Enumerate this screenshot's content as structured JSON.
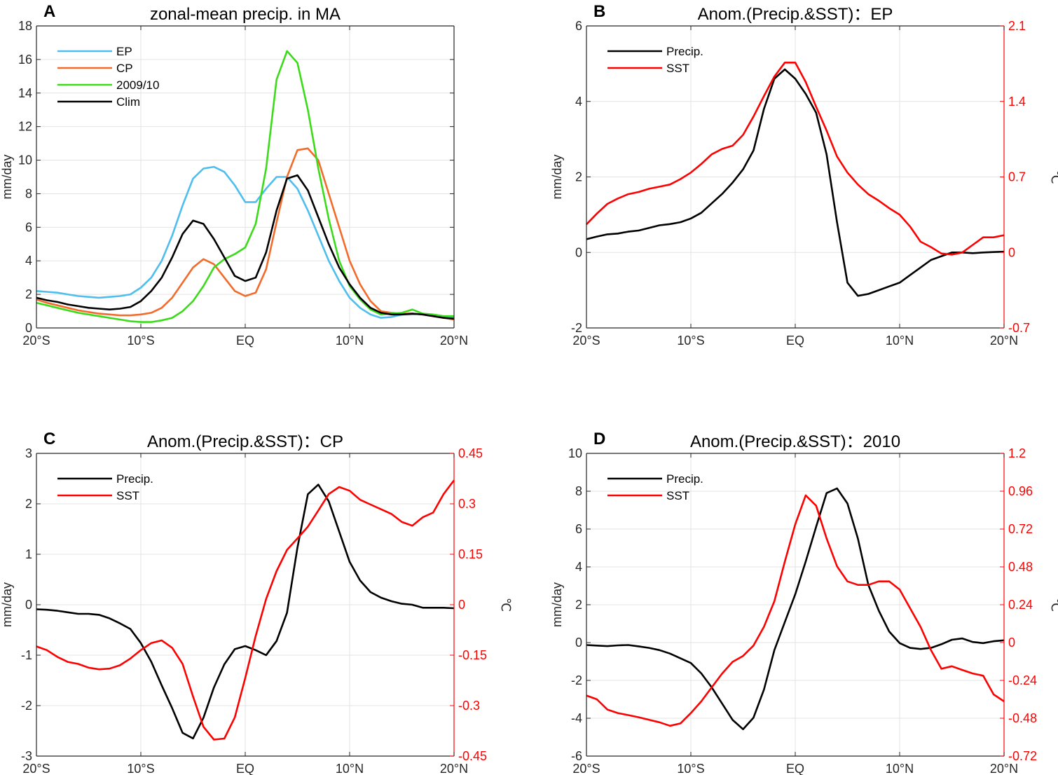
{
  "chart_data": [
    {
      "type": "line",
      "panel_letter": "A",
      "title": "zonal-mean precip. in MA",
      "ylabel": "mm/day",
      "ylim": [
        0,
        18
      ],
      "yticks": [
        0,
        2,
        4,
        6,
        8,
        10,
        12,
        14,
        16,
        18
      ],
      "ytick_labels": [
        "0",
        "2",
        "4",
        "6",
        "8",
        "10",
        "12",
        "14",
        "16",
        "18"
      ],
      "xlim": [
        -20,
        20
      ],
      "xticks": [
        -20,
        -10,
        0,
        10,
        20
      ],
      "xtick_labels": [
        "20°S",
        "10°S",
        "EQ",
        "10°N",
        "20°N"
      ],
      "grid": true,
      "legend_position": "top-left",
      "x": [
        -20,
        -19,
        -18,
        -17,
        -16,
        -15,
        -14,
        -13,
        -12,
        -11,
        -10,
        -9,
        -8,
        -7,
        -6,
        -5,
        -4,
        -3,
        -2,
        -1,
        0,
        1,
        2,
        3,
        4,
        5,
        6,
        7,
        8,
        9,
        10,
        11,
        12,
        13,
        14,
        15,
        16,
        17,
        18,
        19,
        20
      ],
      "series": [
        {
          "name": "EP",
          "color": "#4DBEEE",
          "axis": "left",
          "values": [
            2.2,
            2.15,
            2.1,
            2.0,
            1.9,
            1.85,
            1.8,
            1.85,
            1.9,
            2.0,
            2.4,
            3.0,
            4.0,
            5.5,
            7.3,
            8.9,
            9.5,
            9.6,
            9.3,
            8.5,
            7.5,
            7.5,
            8.3,
            9.0,
            9.0,
            8.3,
            7.0,
            5.5,
            4.0,
            2.8,
            1.8,
            1.2,
            0.8,
            0.6,
            0.65,
            0.8,
            0.8,
            0.85,
            0.75,
            0.65,
            0.6
          ]
        },
        {
          "name": "CP",
          "color": "#F26B2A",
          "axis": "left",
          "values": [
            1.7,
            1.5,
            1.35,
            1.2,
            1.05,
            0.95,
            0.85,
            0.8,
            0.75,
            0.75,
            0.8,
            0.9,
            1.2,
            1.8,
            2.7,
            3.6,
            4.1,
            3.8,
            3.0,
            2.2,
            1.9,
            2.1,
            3.5,
            6.3,
            9.0,
            10.6,
            10.7,
            10.0,
            8.0,
            6.0,
            4.0,
            2.6,
            1.6,
            1.0,
            0.9,
            0.85,
            0.85,
            0.8,
            0.7,
            0.6,
            0.5
          ]
        },
        {
          "name": "2009/10",
          "color": "#3BDB1A",
          "axis": "left",
          "values": [
            1.5,
            1.35,
            1.2,
            1.05,
            0.9,
            0.8,
            0.7,
            0.6,
            0.5,
            0.4,
            0.35,
            0.35,
            0.45,
            0.6,
            1.0,
            1.6,
            2.5,
            3.6,
            4.1,
            4.4,
            4.8,
            6.2,
            9.5,
            14.8,
            16.5,
            15.8,
            13.0,
            9.5,
            6.5,
            4.0,
            2.5,
            1.7,
            1.1,
            0.8,
            0.85,
            0.9,
            1.1,
            0.85,
            0.8,
            0.7,
            0.7
          ]
        },
        {
          "name": "Clim",
          "color": "#000000",
          "axis": "left",
          "values": [
            1.8,
            1.65,
            1.55,
            1.4,
            1.3,
            1.2,
            1.15,
            1.1,
            1.15,
            1.25,
            1.6,
            2.2,
            3.0,
            4.2,
            5.6,
            6.4,
            6.2,
            5.3,
            4.2,
            3.1,
            2.8,
            3.0,
            4.5,
            7.0,
            8.9,
            9.1,
            8.2,
            6.6,
            5.0,
            3.6,
            2.6,
            1.8,
            1.2,
            0.9,
            0.8,
            0.8,
            0.85,
            0.8,
            0.7,
            0.6,
            0.55
          ]
        }
      ]
    },
    {
      "type": "line",
      "panel_letter": "B",
      "title": "Anom.(Precip.&SST)：EP",
      "ylabel": "mm/day",
      "ylabel_right": "℃",
      "ylim": [
        -2,
        6
      ],
      "yticks": [
        -2,
        0,
        2,
        4,
        6
      ],
      "ytick_labels": [
        "-2",
        "0",
        "2",
        "4",
        "6"
      ],
      "ylim_right": [
        -0.7,
        2.1
      ],
      "yticks_right": [
        -0.7,
        0,
        0.7,
        1.4,
        2.1
      ],
      "ytick_labels_right": [
        "-0.7",
        "0",
        "0.7",
        "1.4",
        "2.1"
      ],
      "xlim": [
        -20,
        20
      ],
      "xticks": [
        -20,
        -10,
        0,
        10,
        20
      ],
      "xtick_labels": [
        "20°S",
        "10°S",
        "EQ",
        "10°N",
        "20°N"
      ],
      "grid": true,
      "legend_position": "top-left",
      "x": [
        -20,
        -19,
        -18,
        -17,
        -16,
        -15,
        -14,
        -13,
        -12,
        -11,
        -10,
        -9,
        -8,
        -7,
        -6,
        -5,
        -4,
        -3,
        -2,
        -1,
        0,
        1,
        2,
        3,
        4,
        5,
        6,
        7,
        8,
        9,
        10,
        11,
        12,
        13,
        14,
        15,
        16,
        17,
        18,
        19,
        20
      ],
      "series": [
        {
          "name": "Precip.",
          "color": "#000000",
          "axis": "left",
          "values": [
            0.35,
            0.42,
            0.48,
            0.5,
            0.55,
            0.58,
            0.65,
            0.72,
            0.75,
            0.8,
            0.9,
            1.05,
            1.3,
            1.55,
            1.85,
            2.2,
            2.7,
            3.8,
            4.6,
            4.85,
            4.6,
            4.2,
            3.7,
            2.6,
            0.8,
            -0.8,
            -1.15,
            -1.1,
            -1.0,
            -0.9,
            -0.8,
            -0.6,
            -0.4,
            -0.2,
            -0.1,
            0.0,
            0.0,
            -0.02,
            0.0,
            0.01,
            0.02
          ]
        },
        {
          "name": "SST",
          "color": "#FF0000",
          "axis": "right",
          "values": [
            0.26,
            0.36,
            0.45,
            0.5,
            0.54,
            0.56,
            0.59,
            0.61,
            0.63,
            0.68,
            0.74,
            0.82,
            0.91,
            0.96,
            0.99,
            1.09,
            1.26,
            1.45,
            1.63,
            1.76,
            1.76,
            1.58,
            1.35,
            1.13,
            0.89,
            0.74,
            0.63,
            0.54,
            0.48,
            0.41,
            0.35,
            0.24,
            0.1,
            0.05,
            -0.01,
            -0.02,
            0.0,
            0.07,
            0.14,
            0.14,
            0.16
          ]
        }
      ]
    },
    {
      "type": "line",
      "panel_letter": "C",
      "title": "Anom.(Precip.&SST)：CP",
      "ylabel": "mm/day",
      "ylabel_right": "℃",
      "ylim": [
        -3,
        3
      ],
      "yticks": [
        -3,
        -2,
        -1,
        0,
        1,
        2,
        3
      ],
      "ytick_labels": [
        "-3",
        "-2",
        "-1",
        "0",
        "1",
        "2",
        "3"
      ],
      "ylim_right": [
        -0.45,
        0.45
      ],
      "yticks_right": [
        -0.45,
        -0.3,
        -0.15,
        0,
        0.15,
        0.3,
        0.45
      ],
      "ytick_labels_right": [
        "-0.45",
        "-0.3",
        "-0.15",
        "0",
        "0.15",
        "0.3",
        "0.45"
      ],
      "xlim": [
        -20,
        20
      ],
      "xticks": [
        -20,
        -10,
        0,
        10,
        20
      ],
      "xtick_labels": [
        "20°S",
        "10°S",
        "EQ",
        "10°N",
        "20°N"
      ],
      "grid": true,
      "legend_position": "top-left",
      "x": [
        -20,
        -19,
        -18,
        -17,
        -16,
        -15,
        -14,
        -13,
        -12,
        -11,
        -10,
        -9,
        -8,
        -7,
        -6,
        -5,
        -4,
        -3,
        -2,
        -1,
        0,
        1,
        2,
        3,
        4,
        5,
        6,
        7,
        8,
        9,
        10,
        11,
        12,
        13,
        14,
        15,
        16,
        17,
        18,
        19,
        20
      ],
      "series": [
        {
          "name": "Precip.",
          "color": "#000000",
          "axis": "left",
          "values": [
            -0.09,
            -0.1,
            -0.12,
            -0.15,
            -0.18,
            -0.18,
            -0.2,
            -0.27,
            -0.37,
            -0.48,
            -0.76,
            -1.13,
            -1.6,
            -2.05,
            -2.54,
            -2.65,
            -2.24,
            -1.64,
            -1.18,
            -0.88,
            -0.82,
            -0.9,
            -1.0,
            -0.72,
            -0.16,
            1.13,
            2.19,
            2.38,
            2.05,
            1.45,
            0.85,
            0.48,
            0.25,
            0.14,
            0.07,
            0.02,
            0.0,
            -0.06,
            -0.06,
            -0.06,
            -0.07
          ]
        },
        {
          "name": "SST",
          "color": "#FF0000",
          "axis": "right",
          "values": [
            -0.124,
            -0.135,
            -0.155,
            -0.17,
            -0.176,
            -0.187,
            -0.192,
            -0.19,
            -0.18,
            -0.16,
            -0.135,
            -0.114,
            -0.106,
            -0.128,
            -0.176,
            -0.273,
            -0.363,
            -0.401,
            -0.398,
            -0.335,
            -0.218,
            -0.093,
            0.017,
            0.1,
            0.163,
            0.197,
            0.232,
            0.28,
            0.329,
            0.35,
            0.339,
            0.312,
            0.298,
            0.284,
            0.27,
            0.246,
            0.235,
            0.26,
            0.274,
            0.329,
            0.37
          ]
        }
      ]
    },
    {
      "type": "line",
      "panel_letter": "D",
      "title": "Anom.(Precip.&SST)：2010",
      "ylabel": "mm/day",
      "ylabel_right": "℃",
      "ylim": [
        -6,
        10
      ],
      "yticks": [
        -6,
        -4,
        -2,
        0,
        2,
        4,
        6,
        8,
        10
      ],
      "ytick_labels": [
        "-6",
        "-4",
        "-2",
        "0",
        "2",
        "4",
        "6",
        "8",
        "10"
      ],
      "ylim_right": [
        -0.72,
        1.2
      ],
      "yticks_right": [
        -0.72,
        -0.48,
        -0.24,
        0,
        0.24,
        0.48,
        0.72,
        0.96,
        1.2
      ],
      "ytick_labels_right": [
        "-0.72",
        "-0.48",
        "-0.24",
        "0",
        "0.24",
        "0.48",
        "0.72",
        "0.96",
        "1.2"
      ],
      "xlim": [
        -20,
        20
      ],
      "xticks": [
        -20,
        -10,
        0,
        10,
        20
      ],
      "xtick_labels": [
        "20°S",
        "10°S",
        "EQ",
        "10°N",
        "20°N"
      ],
      "grid": true,
      "legend_position": "top-left",
      "x": [
        -20,
        -19,
        -18,
        -17,
        -16,
        -15,
        -14,
        -13,
        -12,
        -11,
        -10,
        -9,
        -8,
        -7,
        -6,
        -5,
        -4,
        -3,
        -2,
        -1,
        0,
        1,
        2,
        3,
        4,
        5,
        6,
        7,
        8,
        9,
        10,
        11,
        12,
        13,
        14,
        15,
        16,
        17,
        18,
        19,
        20
      ],
      "series": [
        {
          "name": "Precip.",
          "color": "#000000",
          "axis": "left",
          "values": [
            -0.13,
            -0.16,
            -0.19,
            -0.15,
            -0.13,
            -0.2,
            -0.28,
            -0.4,
            -0.58,
            -0.83,
            -1.08,
            -1.63,
            -2.37,
            -3.23,
            -4.09,
            -4.58,
            -3.97,
            -2.49,
            -0.4,
            1.08,
            2.55,
            4.28,
            6.12,
            7.9,
            8.15,
            7.35,
            5.5,
            3.05,
            1.69,
            0.58,
            -0.03,
            -0.28,
            -0.34,
            -0.28,
            -0.09,
            0.15,
            0.22,
            0.03,
            -0.03,
            0.07,
            0.12
          ]
        },
        {
          "name": "SST",
          "color": "#FF0000",
          "axis": "right",
          "values": [
            -0.336,
            -0.36,
            -0.425,
            -0.447,
            -0.46,
            -0.474,
            -0.49,
            -0.506,
            -0.528,
            -0.513,
            -0.447,
            -0.373,
            -0.284,
            -0.196,
            -0.122,
            -0.085,
            -0.019,
            0.1,
            0.262,
            0.513,
            0.75,
            0.934,
            0.868,
            0.661,
            0.484,
            0.388,
            0.366,
            0.366,
            0.388,
            0.388,
            0.336,
            0.218,
            0.1,
            -0.048,
            -0.166,
            -0.15,
            -0.174,
            -0.196,
            -0.21,
            -0.329,
            -0.373
          ]
        }
      ]
    }
  ]
}
